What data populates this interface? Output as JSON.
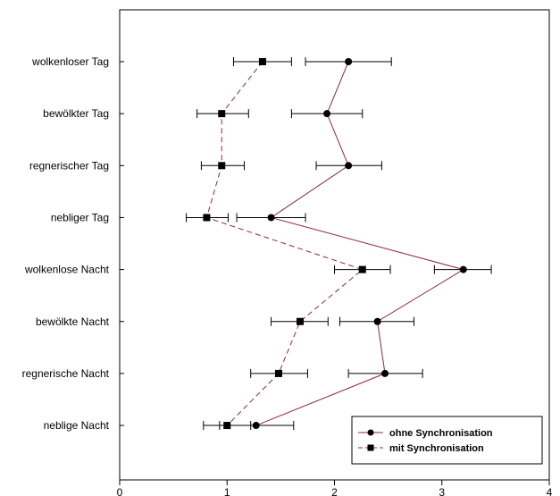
{
  "chart_data": {
    "type": "scatter",
    "title": "",
    "xlabel": "",
    "ylabel": "",
    "xlim": [
      0,
      4
    ],
    "x_ticks": [
      0,
      1,
      2,
      3,
      4
    ],
    "x_tick_labels": [
      "0",
      "1",
      "2",
      "3",
      "4"
    ],
    "categories": [
      "wolkenloser Tag",
      "bewölkter Tag",
      "regnerischer Tag",
      "nebliger Tag",
      "wolkenlose Nacht",
      "bewölkte Nacht",
      "regnerische Nacht",
      "neblige Nacht"
    ],
    "grid": false,
    "legend_position": "bottom-right",
    "series": [
      {
        "name": "ohne Synchronisation",
        "marker": "circle",
        "line_style": "solid",
        "color": "#8b2a3a",
        "marker_color": "#000000",
        "values": [
          2.13,
          1.93,
          2.13,
          1.41,
          3.2,
          2.4,
          2.47,
          1.27
        ],
        "error_low": [
          1.73,
          1.6,
          1.83,
          1.09,
          2.93,
          2.05,
          2.13,
          0.93
        ],
        "error_high": [
          2.53,
          2.26,
          2.44,
          1.73,
          3.46,
          2.74,
          2.82,
          1.62
        ]
      },
      {
        "name": "mit Synchronisation",
        "marker": "square",
        "line_style": "dashed",
        "color": "#8b2a3a",
        "marker_color": "#000000",
        "values": [
          1.33,
          0.95,
          0.95,
          0.81,
          2.26,
          1.68,
          1.48,
          1.0
        ],
        "error_low": [
          1.06,
          0.72,
          0.76,
          0.62,
          2.0,
          1.41,
          1.22,
          0.78
        ],
        "error_high": [
          1.6,
          1.2,
          1.16,
          1.01,
          2.52,
          1.94,
          1.75,
          1.22
        ]
      }
    ]
  }
}
